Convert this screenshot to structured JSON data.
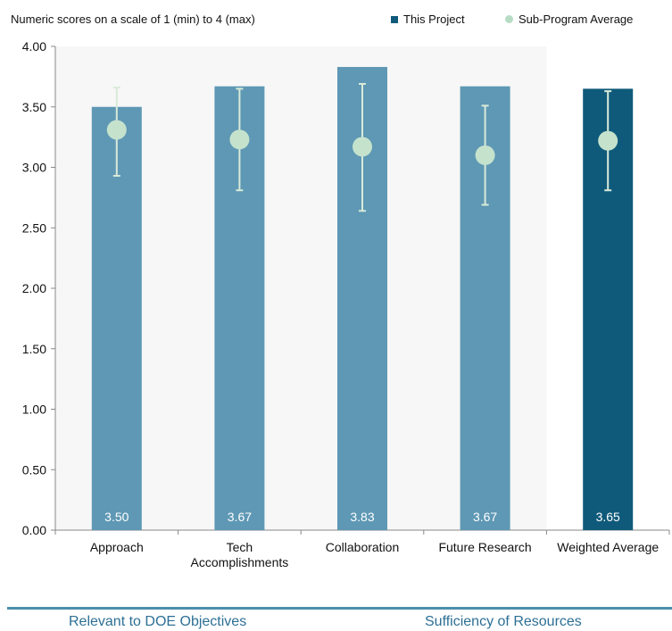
{
  "header": {
    "subtitle": "Numeric scores on a scale of 1 (min) to 4 (max)",
    "legend_project": "This Project",
    "legend_average": "Sub-Program Average"
  },
  "colors": {
    "bar": "#5e98b4",
    "bar_highlight": "#0f5a7a",
    "average_marker": "#c5e2cd",
    "error_bar": "#d9ead9",
    "footer": "#4b8fab"
  },
  "chart_data": {
    "type": "bar",
    "title": "",
    "xlabel": "",
    "ylabel": "",
    "ylim": [
      0,
      4
    ],
    "ytick_labels": [
      "0.00",
      "0.50",
      "1.00",
      "1.50",
      "2.00",
      "2.50",
      "3.00",
      "3.50",
      "4.00"
    ],
    "categories": [
      "Approach",
      "Tech Accomplishments",
      "Collaboration",
      "Future Research",
      "Weighted Average"
    ],
    "category_lines": [
      [
        "Approach"
      ],
      [
        "Tech",
        "Accomplishments"
      ],
      [
        "Collaboration"
      ],
      [
        "Future Research"
      ],
      [
        "Weighted Average"
      ]
    ],
    "series": [
      {
        "name": "This Project",
        "values": [
          3.5,
          3.67,
          3.83,
          3.67,
          3.65
        ],
        "labels": [
          "3.50",
          "3.67",
          "3.83",
          "3.67",
          "3.65"
        ]
      },
      {
        "name": "Sub-Program Average",
        "values": [
          3.31,
          3.23,
          3.17,
          3.1,
          3.22
        ],
        "error_low": [
          2.93,
          2.81,
          2.64,
          2.69,
          2.81
        ],
        "error_high": [
          3.66,
          3.65,
          3.69,
          3.51,
          3.63
        ]
      }
    ],
    "highlight_category": "Weighted Average",
    "grid": false,
    "legend_position": "top-right"
  },
  "footer": {
    "left_label": "Relevant to DOE Objectives",
    "right_label": "Sufficiency of Resources"
  }
}
